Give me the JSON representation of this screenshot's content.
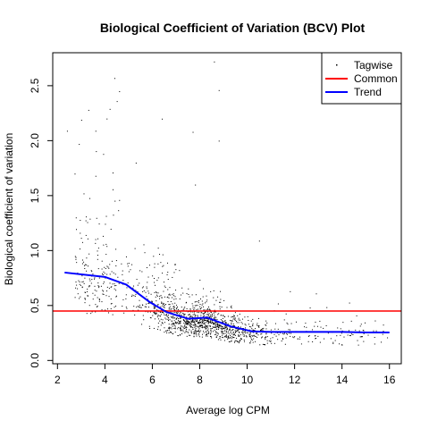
{
  "chart_data": {
    "type": "scatter",
    "title": "Biological Coefficient of Variation (BCV) Plot",
    "xlabel": "Average log CPM",
    "ylabel": "Biological coefficient of variation",
    "xlim": [
      1.8,
      16.5
    ],
    "ylim": [
      -0.03,
      2.8
    ],
    "x_ticks": [
      2,
      4,
      6,
      8,
      10,
      12,
      14,
      16
    ],
    "x_tick_labels": [
      "2",
      "4",
      "6",
      "8",
      "10",
      "12",
      "14",
      "16"
    ],
    "y_ticks": [
      0.0,
      0.5,
      1.0,
      1.5,
      2.0,
      2.5
    ],
    "y_tick_labels": [
      "0.0",
      "0.5",
      "1.0",
      "1.5",
      "2.0",
      "2.5"
    ],
    "grid": false,
    "legend_position": "top-right",
    "legend": [
      {
        "label": "Tagwise",
        "symbol": "point",
        "color": "#000000"
      },
      {
        "label": "Common",
        "symbol": "line",
        "color": "#ff0000"
      },
      {
        "label": "Trend",
        "symbol": "line",
        "color": "#0000ff"
      }
    ],
    "common": {
      "name": "Common",
      "value": 0.45,
      "color": "#ff0000"
    },
    "trend": {
      "name": "Trend",
      "color": "#0000ff",
      "x": [
        2.3,
        4.0,
        4.9,
        5.9,
        6.6,
        7.5,
        8.3,
        9.3,
        10.2,
        11.0,
        12.0,
        13.0,
        14.0,
        15.0,
        16.0
      ],
      "y": [
        0.8,
        0.76,
        0.69,
        0.53,
        0.44,
        0.38,
        0.39,
        0.31,
        0.265,
        0.26,
        0.26,
        0.26,
        0.26,
        0.255,
        0.255
      ]
    },
    "tagwise": {
      "name": "Tagwise",
      "color": "#000000",
      "highlighted_points": [
        {
          "x": 2.4,
          "y": 2.09
        },
        {
          "x": 3.0,
          "y": 2.19
        },
        {
          "x": 3.3,
          "y": 2.28
        },
        {
          "x": 2.9,
          "y": 1.97
        },
        {
          "x": 3.6,
          "y": 2.09
        },
        {
          "x": 4.4,
          "y": 2.57
        },
        {
          "x": 4.6,
          "y": 2.45
        },
        {
          "x": 4.5,
          "y": 2.36
        },
        {
          "x": 6.4,
          "y": 2.2
        },
        {
          "x": 7.7,
          "y": 2.08
        },
        {
          "x": 8.6,
          "y": 2.72
        },
        {
          "x": 8.8,
          "y": 2.46
        },
        {
          "x": 8.8,
          "y": 2.0
        },
        {
          "x": 5.3,
          "y": 1.8
        },
        {
          "x": 7.8,
          "y": 1.6
        },
        {
          "x": 4.6,
          "y": 1.46
        },
        {
          "x": 3.1,
          "y": 1.52
        },
        {
          "x": 3.6,
          "y": 1.68
        },
        {
          "x": 10.5,
          "y": 1.09
        },
        {
          "x": 11.8,
          "y": 0.63
        },
        {
          "x": 12.9,
          "y": 0.61
        },
        {
          "x": 14.6,
          "y": 0.41
        },
        {
          "x": 15.9,
          "y": 0.21
        }
      ]
    }
  }
}
